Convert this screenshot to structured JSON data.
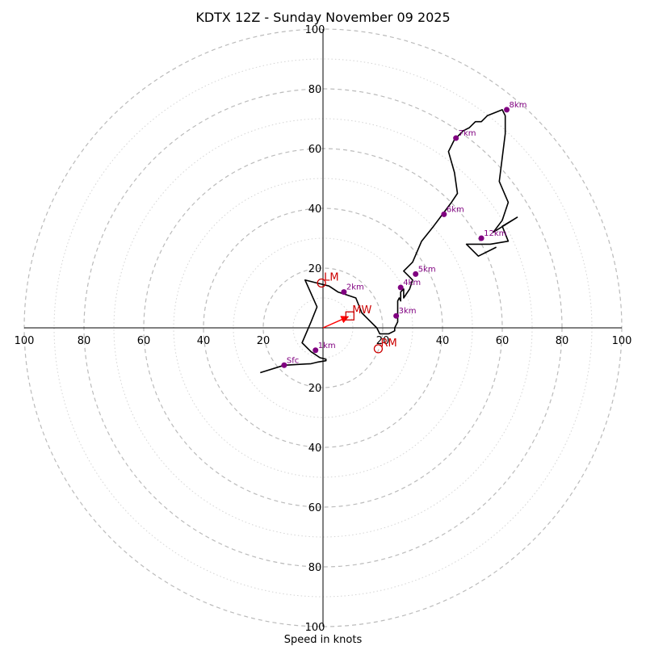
{
  "chart_data": {
    "type": "hodograph",
    "title": "KDTX 12Z - Sunday November 09 2025",
    "xlabel": "Speed in knots",
    "range_knots": 100,
    "ring_step_major": 20,
    "ring_step_minor": 10,
    "tick_labels": {
      "x": [
        "100",
        "80",
        "60",
        "40",
        "20",
        "20",
        "40",
        "60",
        "80",
        "100"
      ],
      "y": [
        "100",
        "80",
        "60",
        "40",
        "20",
        "20",
        "40",
        "60",
        "80",
        "100"
      ]
    },
    "hodograph_line": [
      [
        -21,
        -15
      ],
      [
        -13,
        -12.5
      ],
      [
        -4,
        -12
      ],
      [
        -2,
        -11.5
      ],
      [
        1,
        -11
      ],
      [
        1,
        -10.5
      ],
      [
        -1,
        -10
      ],
      [
        -4,
        -8
      ],
      [
        -7,
        -5
      ],
      [
        -4,
        2
      ],
      [
        -2,
        7
      ],
      [
        -6,
        16
      ],
      [
        -2,
        15
      ],
      [
        2,
        14
      ],
      [
        5,
        12
      ],
      [
        8,
        11
      ],
      [
        11,
        10
      ],
      [
        13,
        5
      ],
      [
        15,
        3
      ],
      [
        18,
        0
      ],
      [
        19,
        -2
      ],
      [
        20,
        -2
      ],
      [
        22,
        -2
      ],
      [
        24,
        -1
      ],
      [
        24,
        0
      ],
      [
        25,
        2
      ],
      [
        25,
        4
      ],
      [
        25,
        7
      ],
      [
        25,
        9
      ],
      [
        25.5,
        10
      ],
      [
        26,
        9
      ],
      [
        26,
        12
      ],
      [
        27,
        13
      ],
      [
        27,
        10
      ],
      [
        29,
        13
      ],
      [
        30,
        16
      ],
      [
        27,
        19
      ],
      [
        30,
        22
      ],
      [
        33,
        29
      ],
      [
        37,
        34
      ],
      [
        40,
        38
      ],
      [
        43,
        42
      ],
      [
        45,
        45
      ],
      [
        44,
        52
      ],
      [
        42,
        59
      ],
      [
        44,
        63
      ],
      [
        47,
        66
      ],
      [
        49,
        67
      ],
      [
        51,
        69
      ],
      [
        53,
        69
      ],
      [
        55,
        71
      ],
      [
        60,
        73
      ],
      [
        61,
        71
      ],
      [
        61,
        65
      ],
      [
        59,
        49
      ],
      [
        62,
        42
      ],
      [
        60,
        36
      ],
      [
        57,
        32
      ],
      [
        65,
        37
      ],
      [
        60,
        34
      ],
      [
        62,
        29
      ],
      [
        56,
        28
      ],
      [
        48,
        28
      ],
      [
        52,
        24
      ],
      [
        58,
        27
      ]
    ],
    "height_markers": [
      {
        "label": "Sfc",
        "u": -13,
        "v": -12.5
      },
      {
        "label": "1km",
        "u": -2.5,
        "v": -7.5
      },
      {
        "label": "2km",
        "u": 7,
        "v": 12
      },
      {
        "label": "3km",
        "u": 24.5,
        "v": 4
      },
      {
        "label": "4km",
        "u": 26,
        "v": 13.5
      },
      {
        "label": "5km",
        "u": 31,
        "v": 18
      },
      {
        "label": "6km",
        "u": 40.5,
        "v": 38
      },
      {
        "label": "7km",
        "u": 44.5,
        "v": 63.5
      },
      {
        "label": "8km",
        "u": 61.5,
        "v": 73
      },
      {
        "label": "12km",
        "u": 53,
        "v": 30
      }
    ],
    "motion_markers": [
      {
        "label": "LM",
        "symbol": "circle",
        "u": -0.5,
        "v": 15
      },
      {
        "label": "RM",
        "symbol": "circle",
        "u": 18.5,
        "v": -7
      },
      {
        "label": "MW",
        "symbol": "square",
        "u": 9,
        "v": 4
      }
    ],
    "mean_wind_arrow": {
      "u": 9,
      "v": 4
    },
    "colors": {
      "hodograph": "#000000",
      "height_marker": "#800080",
      "motion": "#cc0000",
      "arrow": "#ff0000",
      "ring_major": "#bbbbbb",
      "ring_minor": "#d4d4d4"
    }
  }
}
